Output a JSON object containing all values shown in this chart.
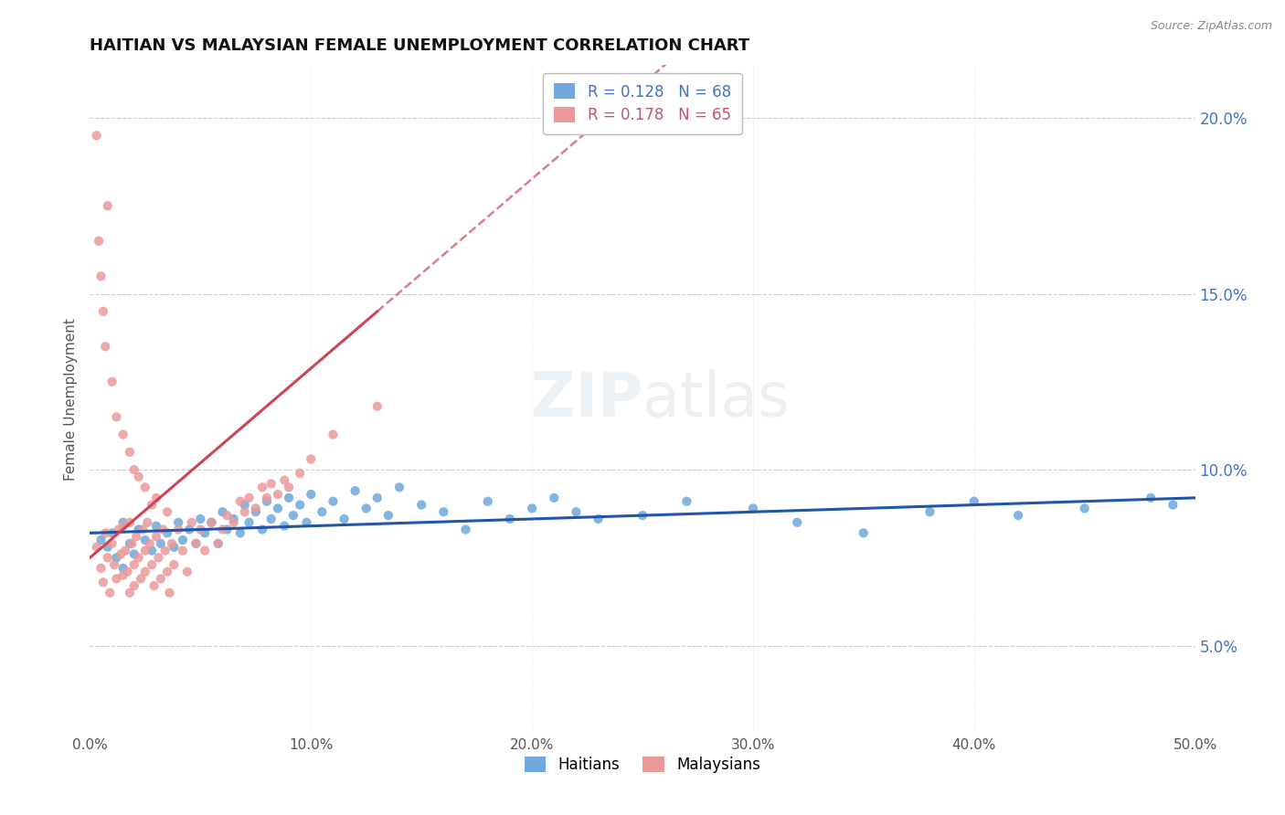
{
  "title": "HAITIAN VS MALAYSIAN FEMALE UNEMPLOYMENT CORRELATION CHART",
  "source": "Source: ZipAtlas.com",
  "ylabel": "Female Unemployment",
  "xlim": [
    0.0,
    0.5
  ],
  "ylim": [
    0.025,
    0.215
  ],
  "xticks": [
    0.0,
    0.1,
    0.2,
    0.3,
    0.4,
    0.5
  ],
  "xtick_labels": [
    "0.0%",
    "10.0%",
    "20.0%",
    "30.0%",
    "40.0%",
    "50.0%"
  ],
  "yticks": [
    0.05,
    0.1,
    0.15,
    0.2
  ],
  "ytick_labels": [
    "5.0%",
    "10.0%",
    "15.0%",
    "20.0%"
  ],
  "haitian_color": "#6fa8dc",
  "haitian_line_color": "#2255aa",
  "malaysian_color": "#ea9999",
  "malaysian_line_color": "#cc4455",
  "haitian_R": 0.128,
  "haitian_N": 68,
  "malaysian_R": 0.178,
  "malaysian_N": 65,
  "watermark": "ZIPatlas",
  "background_color": "#ffffff",
  "haitian_scatter_x": [
    0.005,
    0.008,
    0.01,
    0.012,
    0.015,
    0.015,
    0.018,
    0.02,
    0.022,
    0.025,
    0.028,
    0.03,
    0.032,
    0.035,
    0.038,
    0.04,
    0.042,
    0.045,
    0.048,
    0.05,
    0.052,
    0.055,
    0.058,
    0.06,
    0.062,
    0.065,
    0.068,
    0.07,
    0.072,
    0.075,
    0.078,
    0.08,
    0.082,
    0.085,
    0.088,
    0.09,
    0.092,
    0.095,
    0.098,
    0.1,
    0.105,
    0.11,
    0.115,
    0.12,
    0.125,
    0.13,
    0.135,
    0.14,
    0.15,
    0.16,
    0.17,
    0.18,
    0.19,
    0.2,
    0.21,
    0.22,
    0.23,
    0.25,
    0.27,
    0.3,
    0.32,
    0.35,
    0.38,
    0.4,
    0.42,
    0.45,
    0.48,
    0.49
  ],
  "haitian_scatter_y": [
    0.08,
    0.078,
    0.082,
    0.075,
    0.085,
    0.072,
    0.079,
    0.076,
    0.083,
    0.08,
    0.077,
    0.084,
    0.079,
    0.082,
    0.078,
    0.085,
    0.08,
    0.083,
    0.079,
    0.086,
    0.082,
    0.085,
    0.079,
    0.088,
    0.083,
    0.086,
    0.082,
    0.09,
    0.085,
    0.088,
    0.083,
    0.091,
    0.086,
    0.089,
    0.084,
    0.092,
    0.087,
    0.09,
    0.085,
    0.093,
    0.088,
    0.091,
    0.086,
    0.094,
    0.089,
    0.092,
    0.087,
    0.095,
    0.09,
    0.088,
    0.083,
    0.091,
    0.086,
    0.089,
    0.092,
    0.088,
    0.086,
    0.087,
    0.091,
    0.089,
    0.085,
    0.082,
    0.088,
    0.091,
    0.087,
    0.089,
    0.092,
    0.09
  ],
  "malaysian_scatter_x": [
    0.003,
    0.005,
    0.006,
    0.007,
    0.008,
    0.009,
    0.01,
    0.011,
    0.012,
    0.013,
    0.014,
    0.015,
    0.015,
    0.016,
    0.017,
    0.018,
    0.018,
    0.019,
    0.02,
    0.02,
    0.021,
    0.022,
    0.023,
    0.024,
    0.025,
    0.025,
    0.026,
    0.027,
    0.028,
    0.029,
    0.03,
    0.031,
    0.032,
    0.033,
    0.034,
    0.035,
    0.036,
    0.037,
    0.038,
    0.04,
    0.042,
    0.044,
    0.046,
    0.048,
    0.05,
    0.052,
    0.055,
    0.058,
    0.06,
    0.062,
    0.065,
    0.068,
    0.07,
    0.072,
    0.075,
    0.078,
    0.08,
    0.082,
    0.085,
    0.088,
    0.09,
    0.095,
    0.1,
    0.11,
    0.13
  ],
  "malaysian_scatter_y": [
    0.078,
    0.072,
    0.068,
    0.082,
    0.075,
    0.065,
    0.079,
    0.073,
    0.069,
    0.083,
    0.076,
    0.07,
    0.084,
    0.077,
    0.071,
    0.085,
    0.065,
    0.079,
    0.073,
    0.067,
    0.081,
    0.075,
    0.069,
    0.083,
    0.077,
    0.071,
    0.085,
    0.079,
    0.073,
    0.067,
    0.081,
    0.075,
    0.069,
    0.083,
    0.077,
    0.071,
    0.065,
    0.079,
    0.073,
    0.083,
    0.077,
    0.071,
    0.085,
    0.079,
    0.083,
    0.077,
    0.085,
    0.079,
    0.083,
    0.087,
    0.085,
    0.091,
    0.088,
    0.092,
    0.089,
    0.095,
    0.092,
    0.096,
    0.093,
    0.097,
    0.095,
    0.099,
    0.103,
    0.11,
    0.118
  ],
  "malaysian_high_x": [
    0.003,
    0.004,
    0.005,
    0.006,
    0.007,
    0.008,
    0.01,
    0.012,
    0.015,
    0.018,
    0.02,
    0.022,
    0.025,
    0.028,
    0.03,
    0.035
  ],
  "malaysian_high_y": [
    0.195,
    0.165,
    0.155,
    0.145,
    0.135,
    0.175,
    0.125,
    0.115,
    0.11,
    0.105,
    0.1,
    0.098,
    0.095,
    0.09,
    0.092,
    0.088
  ]
}
